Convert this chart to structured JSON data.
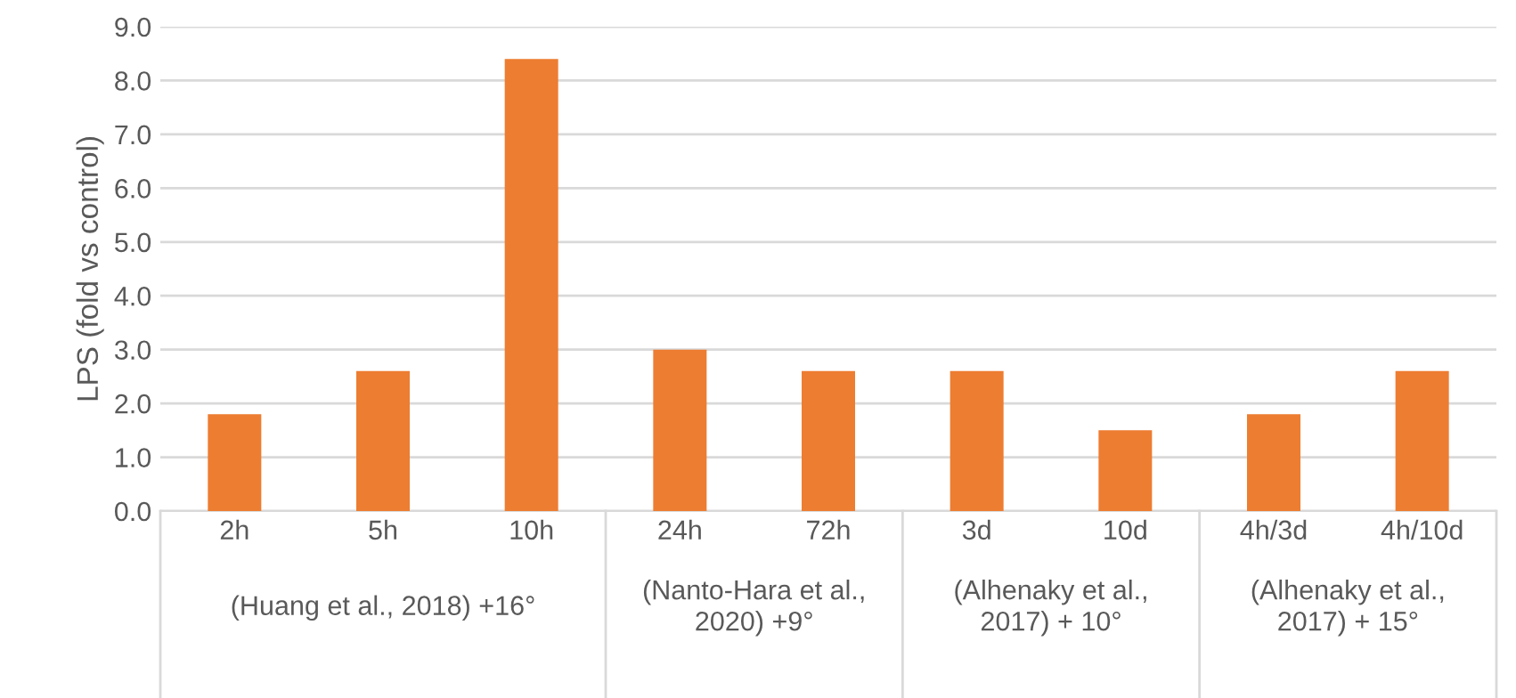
{
  "chart_data": {
    "type": "bar",
    "ylabel": "LPS (fold vs control)",
    "categories": [
      "2h",
      "5h",
      "10h",
      "24h",
      "72h",
      "3d",
      "10d",
      "4h/3d",
      "4h/10d"
    ],
    "values": [
      1.8,
      2.6,
      8.4,
      3.0,
      2.6,
      2.6,
      1.5,
      1.8,
      2.6
    ],
    "color": "#ed7d31",
    "ylim": [
      0,
      9
    ],
    "yticks": [
      {
        "value": 0,
        "label": "0.0"
      },
      {
        "value": 1,
        "label": "1.0"
      },
      {
        "value": 2,
        "label": "2.0"
      },
      {
        "value": 3,
        "label": "3.0"
      },
      {
        "value": 4,
        "label": "4.0"
      },
      {
        "value": 5,
        "label": "5.0"
      },
      {
        "value": 6,
        "label": "6.0"
      },
      {
        "value": 7,
        "label": "7.0"
      },
      {
        "value": 8,
        "label": "8.0"
      },
      {
        "value": 9,
        "label": "9.0"
      }
    ],
    "grid": "y",
    "annotations": [
      "(Huang et al., 2018) +16°",
      "(Nanto-Hara et al.,\n2020) +9°",
      "(Alhenaky et al.,\n2017) + 10°",
      "(Alhenaky et al.,\n2017) + 15°"
    ]
  }
}
